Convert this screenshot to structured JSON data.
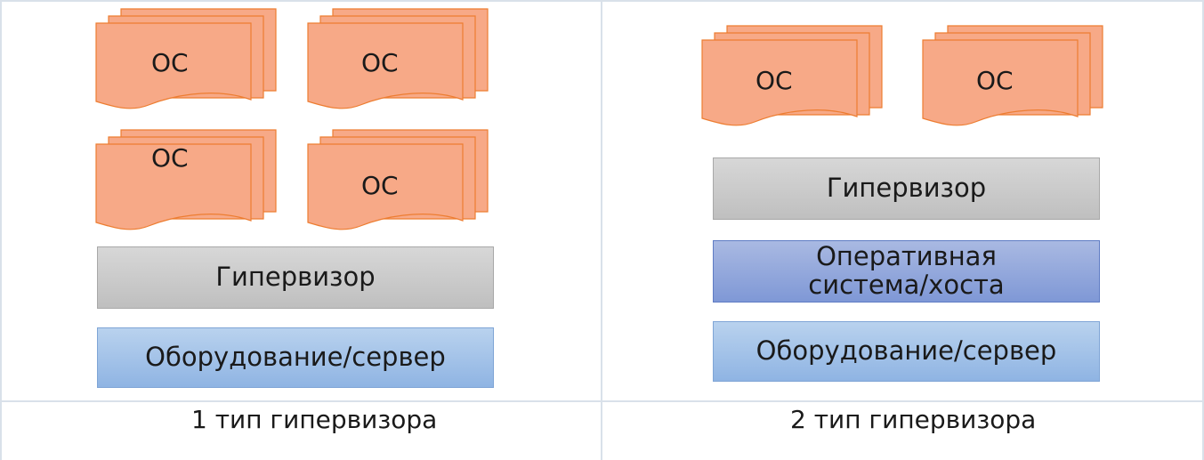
{
  "type1": {
    "os_labels": [
      "ОС",
      "ОС",
      "ОС",
      "ОС"
    ],
    "hypervisor": "Гипервизор",
    "hardware": "Оборудование/сервер",
    "caption": "1 тип гипервизора"
  },
  "type2": {
    "os_labels": [
      "ОС",
      "ОС"
    ],
    "hypervisor": "Гипервизор",
    "host_os": "Оперативная система/хоста",
    "hardware": "Оборудование/сервер",
    "caption": "2 тип гипервизора"
  },
  "colors": {
    "os_fill": "#f7a987",
    "os_stroke": "#ed7d31",
    "hypervisor": "#c8c8c8",
    "hardware": "#a3c2ea",
    "host_os": "#8fa5dc",
    "grid": "#d9e1ea"
  }
}
